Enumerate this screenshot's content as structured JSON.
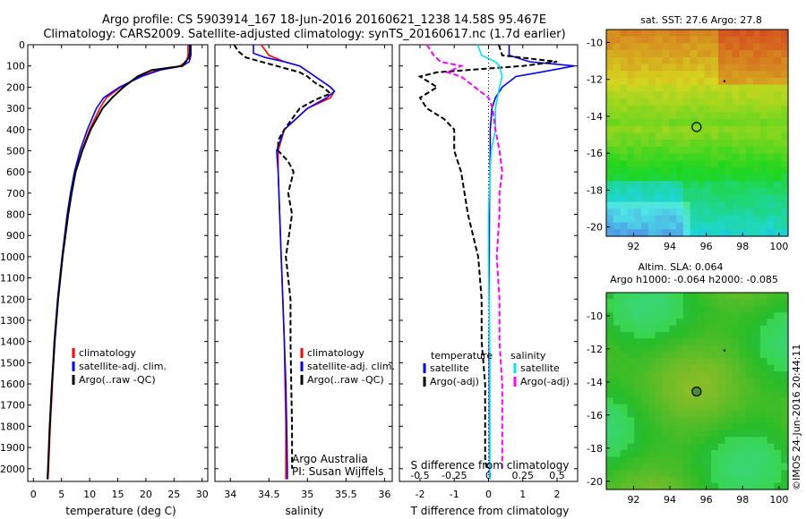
{
  "header": {
    "line1": "Argo profile: CS 5903914_167 18-Jun-2016 20160621_1238 14.58S 95.467E",
    "line2": "Climatology: CARS2009. Satellite-adjusted climatology: synTS_20160617.nc (1.7d earlier)"
  },
  "colors": {
    "climatology": "#ff0000",
    "satellite": "#0000ff",
    "argo": "#000000",
    "salinity_satellite": "#00e5ee",
    "salinity_argo": "#ff00ff"
  },
  "depth_axis": {
    "ticks": [
      "0",
      "100",
      "200",
      "300",
      "400",
      "500",
      "600",
      "700",
      "800",
      "900",
      "1000",
      "1100",
      "1200",
      "1300",
      "1400",
      "1500",
      "1600",
      "1700",
      "1800",
      "1900",
      "2000"
    ]
  },
  "chart_data": [
    {
      "type": "line",
      "name": "temperature",
      "xlabel": "temperature (deg C)",
      "xlim": [
        -1,
        31
      ],
      "ylim": [
        2060,
        0
      ],
      "xticks": [
        "0",
        "5",
        "10",
        "15",
        "20",
        "25",
        "30"
      ],
      "legend": [
        "climatology",
        "satellite-adj. clim.",
        "Argo(..raw -QC)"
      ],
      "series": [
        {
          "name": "climatology",
          "depth": [
            0,
            50,
            80,
            100,
            120,
            150,
            200,
            250,
            300,
            400,
            500,
            600,
            700,
            800,
            1000,
            1200,
            1400,
            1600,
            1800,
            2000,
            2050
          ],
          "values": [
            27.5,
            27.5,
            27.2,
            26,
            22,
            19,
            15.5,
            13,
            11.8,
            10,
            8.6,
            7.5,
            6.8,
            6.2,
            5.2,
            4.4,
            3.8,
            3.4,
            3.0,
            2.7,
            2.6
          ]
        },
        {
          "name": "satellite-adj. clim.",
          "depth": [
            0,
            50,
            80,
            100,
            120,
            150,
            200,
            250,
            300,
            400,
            500,
            600,
            700,
            800,
            1000,
            1200,
            1400,
            1600,
            1800,
            2000,
            2050
          ],
          "values": [
            28,
            28,
            27.7,
            26.5,
            22.5,
            19.2,
            15.3,
            12.5,
            11.2,
            9.6,
            8.3,
            7.3,
            6.6,
            6.0,
            5.1,
            4.3,
            3.7,
            3.3,
            2.9,
            2.6,
            2.5
          ]
        },
        {
          "name": "Argo",
          "depth": [
            0,
            30,
            60,
            80,
            100,
            120,
            150,
            200,
            250,
            300,
            400,
            500,
            600,
            700,
            800,
            1000,
            1200,
            1400,
            1600,
            1800,
            2000,
            2050
          ],
          "values": [
            27.8,
            27.8,
            27.7,
            27,
            26.5,
            21,
            18.5,
            16,
            14,
            12.3,
            10.2,
            8.7,
            7.5,
            6.8,
            6.2,
            5.2,
            4.4,
            3.8,
            3.3,
            2.9,
            2.6,
            2.5
          ]
        }
      ]
    },
    {
      "type": "line",
      "name": "salinity",
      "xlabel": "salinity",
      "xlim": [
        33.8,
        36.1
      ],
      "ylim": [
        2060,
        0
      ],
      "xticks": [
        "34",
        "34.5",
        "35",
        "35.5",
        "36"
      ],
      "legend": [
        "climatology",
        "satellite-adj. clim.",
        "Argo(..raw -QC)"
      ],
      "credit": [
        "Argo Australia",
        "PI: Susan Wijffels"
      ],
      "series": [
        {
          "name": "climatology",
          "depth": [
            0,
            50,
            80,
            100,
            150,
            200,
            220,
            250,
            300,
            400,
            500,
            600,
            800,
            1000,
            1200,
            1400,
            1600,
            1800,
            2000,
            2050
          ],
          "values": [
            34.4,
            34.5,
            34.7,
            34.9,
            35.1,
            35.3,
            35.35,
            35.3,
            35.0,
            34.7,
            34.62,
            34.62,
            34.64,
            34.66,
            34.68,
            34.7,
            34.71,
            34.72,
            34.72,
            34.72
          ]
        },
        {
          "name": "satellite-adj. clim.",
          "depth": [
            0,
            40,
            60,
            80,
            100,
            150,
            200,
            220,
            250,
            300,
            400,
            500,
            600,
            800,
            1000,
            1200,
            1400,
            1600,
            1800,
            2000,
            2050
          ],
          "values": [
            34.3,
            34.3,
            34.45,
            34.7,
            34.9,
            35.1,
            35.3,
            35.35,
            35.25,
            35.0,
            34.7,
            34.6,
            34.62,
            34.64,
            34.66,
            34.68,
            34.7,
            34.72,
            34.73,
            34.74,
            34.74
          ]
        },
        {
          "name": "Argo",
          "depth": [
            0,
            30,
            60,
            80,
            100,
            130,
            150,
            180,
            200,
            230,
            260,
            300,
            350,
            400,
            450,
            500,
            550,
            600,
            700,
            800,
            1000,
            1200,
            1400,
            1600,
            1800,
            1900,
            2000
          ],
          "values": [
            34.05,
            34.1,
            34.2,
            34.4,
            34.6,
            34.9,
            35.0,
            35.1,
            35.2,
            35.3,
            35.1,
            34.9,
            34.8,
            34.7,
            34.62,
            34.62,
            34.75,
            34.82,
            34.75,
            34.8,
            34.72,
            34.78,
            34.78,
            34.79,
            34.8,
            34.8,
            34.8
          ]
        }
      ]
    },
    {
      "type": "line",
      "name": "difference",
      "xlabel": "T difference from climatology",
      "xlabel_top": "S difference from climatology",
      "xlim": [
        -2.6,
        2.6
      ],
      "ylim": [
        2060,
        0
      ],
      "xticks": [
        "-2",
        "-1",
        "0",
        "1",
        "2"
      ],
      "xticks_top": [
        "-0.5",
        "-0.25",
        "0",
        "0.25",
        "0.5"
      ],
      "legend_temperature": {
        "title": "temperature",
        "items": [
          "satellite",
          "Argo(-adj)"
        ]
      },
      "legend_salinity": {
        "title": "salinity",
        "items": [
          "satellite",
          "Argo(-adj)"
        ]
      },
      "series": [
        {
          "name": "T satellite",
          "depth": [
            0,
            50,
            80,
            100,
            130,
            150,
            200,
            250,
            300,
            400,
            500,
            700,
            1000,
            1500,
            2000,
            2050
          ],
          "values": [
            0.6,
            0.6,
            1.2,
            2.5,
            1.5,
            0.8,
            0.4,
            0.2,
            0.1,
            0.05,
            0.05,
            0.03,
            0.02,
            0.02,
            0.03,
            0.03
          ]
        },
        {
          "name": "T Argo(-adj)",
          "depth": [
            0,
            50,
            80,
            100,
            130,
            150,
            200,
            250,
            300,
            350,
            400,
            500,
            600,
            700,
            800,
            1000,
            1200,
            1400,
            1600,
            1800,
            1950,
            2000
          ],
          "values": [
            0.3,
            0.4,
            2.0,
            1.0,
            -1.5,
            -2.0,
            -1.5,
            -2.0,
            -1.8,
            -1.3,
            -1.0,
            -1.0,
            -0.8,
            -0.7,
            -0.6,
            -0.3,
            -0.2,
            -0.2,
            -0.1,
            -0.1,
            -0.1,
            -0.05
          ]
        },
        {
          "name": "S satellite",
          "depth": [
            0,
            50,
            80,
            100,
            150,
            200,
            300,
            400,
            500,
            600,
            800,
            1000,
            1500,
            2000,
            2050
          ],
          "values": [
            -0.08,
            -0.05,
            0.05,
            0.08,
            0.1,
            0.08,
            0.05,
            0.05,
            0.02,
            0.01,
            0.0,
            0.0,
            0.01,
            0.01,
            0.01
          ]
        },
        {
          "name": "S Argo(-adj)",
          "depth": [
            0,
            50,
            80,
            100,
            130,
            150,
            200,
            250,
            300,
            400,
            500,
            600,
            700,
            800,
            1000,
            1200,
            1400,
            1600,
            1800,
            2000
          ],
          "values": [
            -0.45,
            -0.4,
            -0.35,
            -0.2,
            -0.3,
            -0.2,
            -0.1,
            0.0,
            0.03,
            0.05,
            0.08,
            0.1,
            0.08,
            0.08,
            0.06,
            0.08,
            0.08,
            0.1,
            0.1,
            0.1
          ]
        }
      ]
    },
    {
      "type": "heatmap",
      "name": "sst_map",
      "title": "sat. SST: 27.6 Argo: 27.8",
      "xlim": [
        90.5,
        100.5
      ],
      "ylim": [
        -20.5,
        -9.3
      ],
      "xticks": [
        "92",
        "94",
        "96",
        "98",
        "100"
      ],
      "yticks": [
        "-10",
        "-12",
        "-14",
        "-16",
        "-18",
        "-20"
      ],
      "profile_location": {
        "lon": 95.467,
        "lat": -14.58
      }
    },
    {
      "type": "heatmap",
      "name": "sla_map",
      "title_line1": "Altim. SLA: 0.064",
      "title_line2": "Argo h1000: -0.064 h2000: -0.085",
      "xlim": [
        90.5,
        100.5
      ],
      "ylim": [
        -20.5,
        -8.6
      ],
      "xticks": [
        "92",
        "94",
        "96",
        "98",
        "100"
      ],
      "yticks": [
        "-10",
        "-12",
        "-14",
        "-16",
        "-18",
        "-20"
      ],
      "profile_location": {
        "lon": 95.467,
        "lat": -14.58
      }
    }
  ],
  "footer": {
    "stamp": "©IMOS 24-Jun-2016 20:44:11"
  }
}
